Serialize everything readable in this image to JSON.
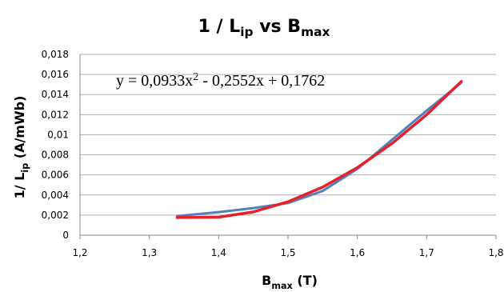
{
  "chart_data": {
    "type": "line",
    "title": [
      {
        "text": "1 / L"
      },
      {
        "text": "ip",
        "sub": true
      },
      {
        "text": " vs B"
      },
      {
        "text": "max",
        "sub": true
      }
    ],
    "x_label": [
      {
        "text": "B"
      },
      {
        "text": "max",
        "sub": true
      },
      {
        "text": " (T)"
      }
    ],
    "y_label": [
      {
        "text": "1/ L"
      },
      {
        "text": "ip",
        "sub": true
      },
      {
        "text": " (A/mWb)"
      }
    ],
    "annotation": [
      {
        "text": "y = 0,0933x"
      },
      {
        "text": "2",
        "sup": true
      },
      {
        "text": " - 0,2552x + 0,1762"
      }
    ],
    "x": [
      1.34,
      1.4,
      1.45,
      1.5,
      1.55,
      1.6,
      1.65,
      1.7,
      1.75
    ],
    "series": [
      {
        "color": "#4f81bd",
        "values": [
          0.0019,
          0.0023,
          0.0027,
          0.0032,
          0.0044,
          0.0066,
          0.0095,
          0.0124,
          0.0152
        ]
      },
      {
        "color": "#e8202a",
        "values": [
          0.00176,
          0.00179,
          0.00232,
          0.00333,
          0.00479,
          0.00673,
          0.00913,
          0.012,
          0.0153
        ]
      }
    ],
    "xlim": [
      1.2,
      1.8
    ],
    "xticks": [
      {
        "value": 1.2,
        "label": "1,2"
      },
      {
        "value": 1.3,
        "label": "1,3"
      },
      {
        "value": 1.4,
        "label": "1,4"
      },
      {
        "value": 1.5,
        "label": "1,5"
      },
      {
        "value": 1.6,
        "label": "1,6"
      },
      {
        "value": 1.7,
        "label": "1,7"
      },
      {
        "value": 1.8,
        "label": "1,8"
      }
    ],
    "ylim": [
      0,
      0.018
    ],
    "yticks": [
      0,
      {
        "value": 0.002,
        "label": "0,002"
      },
      {
        "value": 0.004,
        "label": "0,004"
      },
      {
        "value": 0.006,
        "label": "0,006"
      },
      {
        "value": 0.008,
        "label": "0,008"
      },
      {
        "value": 0.01,
        "label": "0,01"
      },
      {
        "value": 0.012,
        "label": "0,012"
      },
      {
        "value": 0.014,
        "label": "0,014"
      },
      {
        "value": 0.016,
        "label": "0,016"
      },
      {
        "value": 0.018,
        "label": "0,018"
      }
    ],
    "grid": true
  }
}
